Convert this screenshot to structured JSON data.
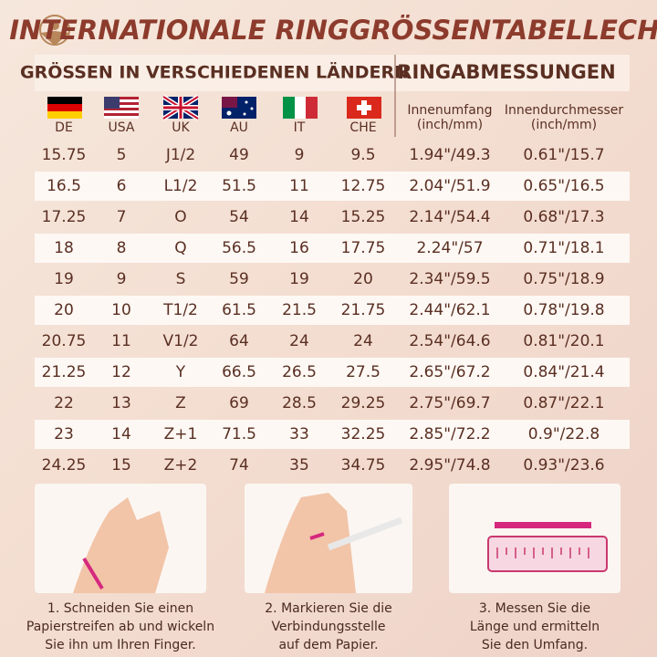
{
  "header": {
    "title": "INTERNATIONALE RINGGRÖSSENTABELLECHART"
  },
  "table": {
    "group_headers": [
      "GRÖSSEN IN VERSCHIEDENEN LÄNDERN",
      "RINGABMESSUNGEN"
    ],
    "columns": [
      "DE",
      "USA",
      "UK",
      "AU",
      "IT",
      "CHE"
    ],
    "measure_columns": [
      {
        "name": "Innenumfang",
        "unit": "(inch/mm)"
      },
      {
        "name": "Innendurchmesser",
        "unit": "(inch/mm)"
      }
    ],
    "rows": [
      [
        "15.75",
        "5",
        "J1/2",
        "49",
        "9",
        "9.5",
        "1.94\"/49.3",
        "0.61\"/15.7"
      ],
      [
        "16.5",
        "6",
        "L1/2",
        "51.5",
        "11",
        "12.75",
        "2.04\"/51.9",
        "0.65\"/16.5"
      ],
      [
        "17.25",
        "7",
        "O",
        "54",
        "14",
        "15.25",
        "2.14\"/54.4",
        "0.68\"/17.3"
      ],
      [
        "18",
        "8",
        "Q",
        "56.5",
        "16",
        "17.75",
        "2.24\"/57",
        "0.71\"/18.1"
      ],
      [
        "19",
        "9",
        "S",
        "59",
        "19",
        "20",
        "2.34\"/59.5",
        "0.75\"/18.9"
      ],
      [
        "20",
        "10",
        "T1/2",
        "61.5",
        "21.5",
        "21.75",
        "2.44\"/62.1",
        "0.78\"/19.8"
      ],
      [
        "20.75",
        "11",
        "V1/2",
        "64",
        "24",
        "24",
        "2.54\"/64.6",
        "0.81\"/20.1"
      ],
      [
        "21.25",
        "12",
        "Y",
        "66.5",
        "26.5",
        "27.5",
        "2.65\"/67.2",
        "0.84\"/21.4"
      ],
      [
        "22",
        "13",
        "Z",
        "69",
        "28.5",
        "29.25",
        "2.75\"/69.7",
        "0.87\"/22.1"
      ],
      [
        "23",
        "14",
        "Z+1",
        "71.5",
        "33",
        "32.25",
        "2.85\"/72.2",
        "0.9\"/22.8"
      ],
      [
        "24.25",
        "15",
        "Z+2",
        "74",
        "35",
        "34.75",
        "2.95\"/74.8",
        "0.93\"/23.6"
      ]
    ]
  },
  "steps": [
    {
      "lines": [
        "1. Schneiden Sie einen",
        "Papierstreifen ab und wickeln",
        "Sie ihn um Ihren Finger."
      ]
    },
    {
      "lines": [
        "2. Markieren Sie die",
        "Verbindungsstelle",
        "auf dem Papier."
      ]
    },
    {
      "lines": [
        "3. Messen Sie die",
        "Länge und ermitteln",
        "Sie den Umfang."
      ]
    }
  ]
}
